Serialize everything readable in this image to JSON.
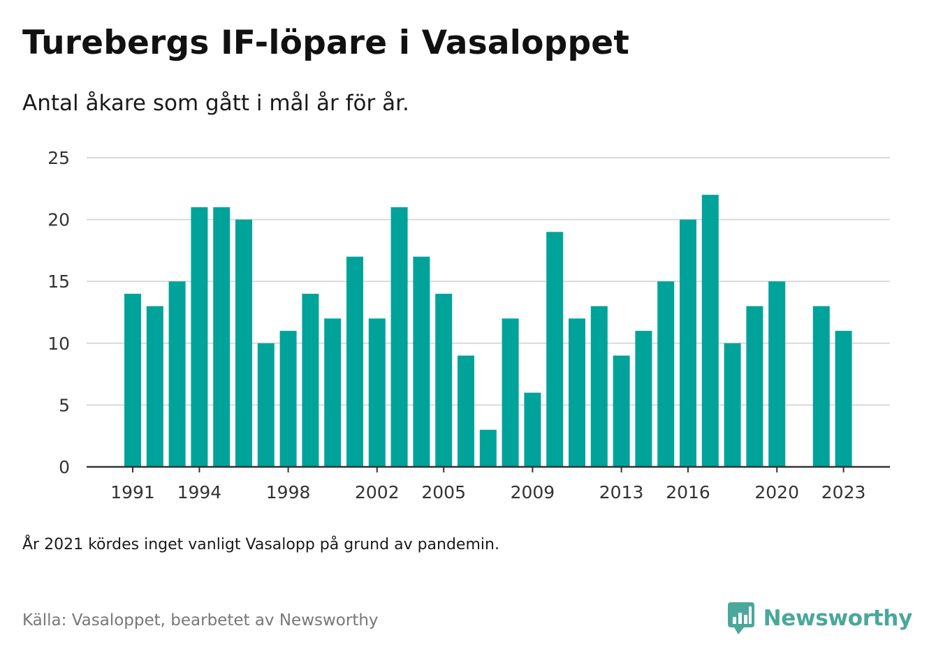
{
  "header": {
    "title": "Turebergs IF-löpare i Vasaloppet",
    "subtitle": "Antal åkare som gått i mål år för år."
  },
  "chart_data": {
    "type": "bar",
    "categories": [
      "1991",
      "1992",
      "1993",
      "1994",
      "1995",
      "1996",
      "1997",
      "1998",
      "1999",
      "2000",
      "2001",
      "2002",
      "2003",
      "2004",
      "2005",
      "2006",
      "2007",
      "2008",
      "2009",
      "2010",
      "2011",
      "2012",
      "2013",
      "2014",
      "2015",
      "2016",
      "2017",
      "2018",
      "2019",
      "2020",
      "2021",
      "2022",
      "2023"
    ],
    "values": [
      14,
      13,
      15,
      21,
      21,
      20,
      10,
      11,
      14,
      12,
      17,
      12,
      21,
      17,
      14,
      9,
      3,
      12,
      6,
      19,
      12,
      13,
      9,
      11,
      15,
      20,
      22,
      10,
      13,
      15,
      null,
      13,
      11
    ],
    "x_tick_labels": [
      "1991",
      "1994",
      "1998",
      "2002",
      "2005",
      "2009",
      "2013",
      "2016",
      "2020",
      "2023"
    ],
    "y_ticks": [
      0,
      5,
      10,
      15,
      20,
      25
    ],
    "ylim": [
      0,
      25
    ],
    "xlabel": "",
    "ylabel": "",
    "grid": true,
    "colors": {
      "bar": "#00a39a",
      "grid": "#d9d9d9",
      "axis": "#333333"
    }
  },
  "footer": {
    "note": "År 2021 kördes inget vanligt Vasalopp på grund av pandemin.",
    "source": "Källa: Vasaloppet, bearbetet av Newsworthy",
    "brand": "Newsworthy",
    "brand_color": "#4aa79b",
    "brand_icon": "newsworthy-logo-icon"
  }
}
